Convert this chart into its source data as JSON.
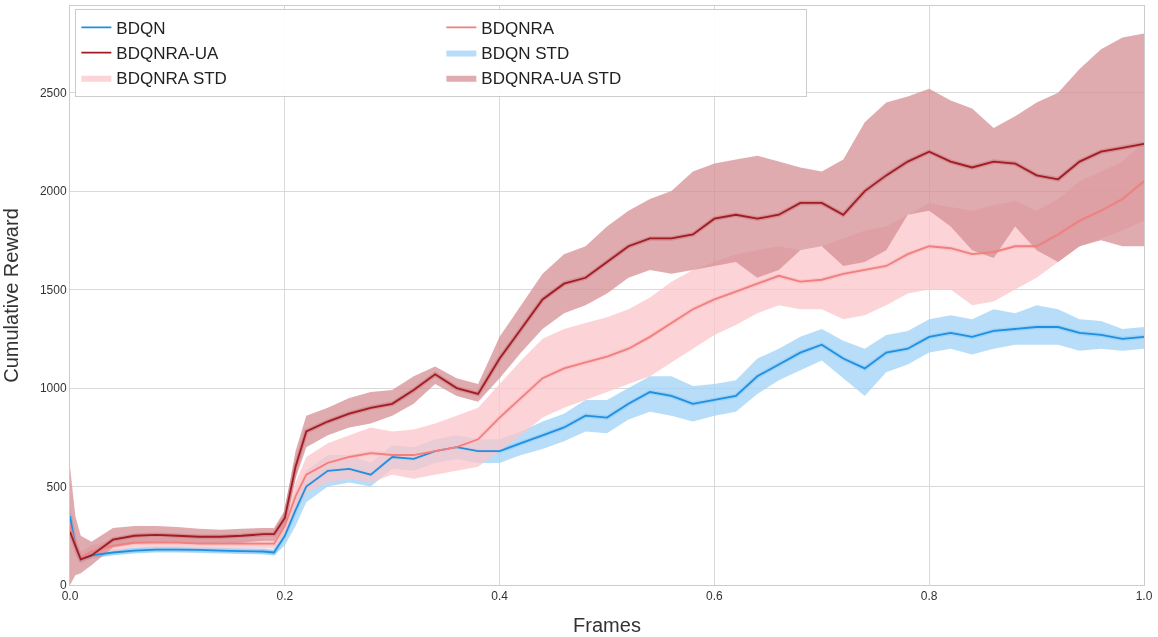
{
  "chart_data": {
    "type": "line",
    "xlabel": "Frames",
    "ylabel": "Cumulative Reward",
    "x": [
      0,
      0.005,
      0.01,
      0.02,
      0.04,
      0.06,
      0.08,
      0.1,
      0.12,
      0.14,
      0.16,
      0.18,
      0.19,
      0.2,
      0.21,
      0.22,
      0.24,
      0.26,
      0.28,
      0.3,
      0.32,
      0.34,
      0.36,
      0.38,
      0.4,
      0.42,
      0.44,
      0.46,
      0.48,
      0.5,
      0.52,
      0.54,
      0.56,
      0.58,
      0.6,
      0.62,
      0.64,
      0.66,
      0.68,
      0.7,
      0.72,
      0.74,
      0.76,
      0.78,
      0.8,
      0.82,
      0.84,
      0.86,
      0.88,
      0.9,
      0.92,
      0.94,
      0.96,
      0.98,
      1.0
    ],
    "series": [
      {
        "name": "BDQN",
        "color": "#1f8fe0",
        "values": [
          350,
          200,
          130,
          150,
          165,
          175,
          180,
          180,
          178,
          175,
          172,
          170,
          165,
          250,
          380,
          500,
          580,
          590,
          560,
          650,
          640,
          680,
          700,
          680,
          680,
          720,
          760,
          800,
          860,
          850,
          920,
          980,
          960,
          920,
          940,
          960,
          1060,
          1120,
          1180,
          1220,
          1150,
          1100,
          1180,
          1200,
          1260,
          1280,
          1260,
          1290,
          1300,
          1310,
          1310,
          1280,
          1270,
          1250,
          1260
        ]
      },
      {
        "name": "BDQNRA",
        "color": "#f07f7f",
        "values": [
          300,
          200,
          140,
          170,
          200,
          215,
          215,
          215,
          210,
          210,
          210,
          210,
          210,
          300,
          450,
          560,
          620,
          650,
          670,
          660,
          660,
          680,
          700,
          740,
          850,
          950,
          1050,
          1100,
          1130,
          1160,
          1200,
          1260,
          1330,
          1400,
          1450,
          1490,
          1530,
          1570,
          1540,
          1550,
          1580,
          1600,
          1620,
          1680,
          1720,
          1710,
          1680,
          1690,
          1720,
          1720,
          1780,
          1850,
          1900,
          1960,
          2050
        ]
      },
      {
        "name": "BDQNRA-UA",
        "color": "#a01c24",
        "values": [
          270,
          200,
          130,
          150,
          230,
          250,
          255,
          250,
          245,
          245,
          250,
          258,
          258,
          340,
          600,
          780,
          830,
          870,
          900,
          920,
          990,
          1070,
          1000,
          970,
          1150,
          1300,
          1450,
          1530,
          1560,
          1640,
          1720,
          1760,
          1760,
          1780,
          1860,
          1880,
          1860,
          1880,
          1940,
          1940,
          1880,
          2000,
          2080,
          2150,
          2200,
          2150,
          2120,
          2150,
          2140,
          2080,
          2060,
          2150,
          2200,
          2220,
          2240
        ]
      },
      {
        "name": "BDQN STD",
        "color": "#9fd2f7",
        "values": [
          350,
          200,
          130,
          150,
          165,
          175,
          180,
          180,
          178,
          175,
          172,
          170,
          165,
          250,
          380,
          500,
          580,
          590,
          560,
          650,
          640,
          680,
          700,
          680,
          680,
          720,
          760,
          800,
          860,
          850,
          920,
          980,
          960,
          920,
          940,
          960,
          1060,
          1120,
          1180,
          1220,
          1150,
          1100,
          1180,
          1200,
          1260,
          1280,
          1260,
          1290,
          1300,
          1310,
          1310,
          1280,
          1270,
          1250,
          1260
        ],
        "lower": [
          300,
          150,
          110,
          135,
          150,
          160,
          165,
          165,
          163,
          160,
          157,
          155,
          150,
          200,
          300,
          420,
          500,
          520,
          500,
          590,
          580,
          620,
          640,
          620,
          620,
          660,
          690,
          730,
          780,
          770,
          840,
          880,
          860,
          830,
          860,
          880,
          970,
          1040,
          1090,
          1140,
          1050,
          960,
          1080,
          1120,
          1180,
          1200,
          1170,
          1200,
          1220,
          1220,
          1220,
          1190,
          1200,
          1190,
          1200
        ],
        "upper": [
          400,
          250,
          150,
          165,
          180,
          190,
          195,
          195,
          193,
          190,
          187,
          185,
          180,
          300,
          460,
          580,
          660,
          660,
          620,
          710,
          700,
          740,
          760,
          740,
          740,
          780,
          830,
          870,
          940,
          940,
          1000,
          1060,
          1060,
          1010,
          1020,
          1040,
          1150,
          1200,
          1260,
          1300,
          1240,
          1200,
          1270,
          1290,
          1350,
          1370,
          1350,
          1400,
          1380,
          1420,
          1400,
          1350,
          1340,
          1300,
          1310
        ]
      },
      {
        "name": "BDQNRA STD",
        "color": "#fbc6c9",
        "values": [
          300,
          200,
          140,
          170,
          200,
          215,
          215,
          215,
          210,
          210,
          210,
          210,
          210,
          300,
          450,
          560,
          620,
          650,
          670,
          660,
          660,
          680,
          700,
          740,
          850,
          950,
          1050,
          1100,
          1130,
          1160,
          1200,
          1260,
          1330,
          1400,
          1450,
          1490,
          1530,
          1570,
          1540,
          1550,
          1580,
          1600,
          1620,
          1680,
          1720,
          1710,
          1680,
          1690,
          1720,
          1720,
          1780,
          1850,
          1900,
          1960,
          2050
        ],
        "lower": [
          250,
          150,
          110,
          140,
          170,
          190,
          190,
          190,
          185,
          185,
          185,
          185,
          185,
          250,
          380,
          470,
          520,
          540,
          520,
          560,
          540,
          560,
          580,
          600,
          680,
          760,
          850,
          900,
          940,
          980,
          1020,
          1060,
          1130,
          1200,
          1270,
          1320,
          1380,
          1420,
          1400,
          1400,
          1350,
          1370,
          1420,
          1480,
          1500,
          1500,
          1420,
          1440,
          1500,
          1560,
          1640,
          1720,
          1760,
          1800,
          1850
        ],
        "upper": [
          350,
          250,
          170,
          200,
          230,
          240,
          240,
          240,
          235,
          235,
          235,
          235,
          235,
          350,
          520,
          650,
          720,
          760,
          800,
          780,
          790,
          820,
          860,
          900,
          1020,
          1140,
          1250,
          1300,
          1330,
          1360,
          1400,
          1460,
          1540,
          1600,
          1640,
          1680,
          1700,
          1720,
          1700,
          1720,
          1760,
          1800,
          1820,
          1880,
          1940,
          1920,
          1900,
          1930,
          1950,
          1900,
          1960,
          2050,
          2100,
          2150,
          2250
        ]
      },
      {
        "name": "BDQNRA-UA STD",
        "color": "#d48f93",
        "values": [
          270,
          200,
          130,
          150,
          230,
          250,
          255,
          250,
          245,
          245,
          250,
          258,
          258,
          340,
          600,
          780,
          830,
          870,
          900,
          920,
          990,
          1070,
          1000,
          970,
          1150,
          1300,
          1450,
          1530,
          1560,
          1640,
          1720,
          1760,
          1760,
          1780,
          1860,
          1880,
          1860,
          1880,
          1940,
          1940,
          1880,
          2000,
          2080,
          2150,
          2200,
          2150,
          2120,
          2150,
          2140,
          2080,
          2060,
          2150,
          2200,
          2220,
          2240
        ],
        "lower": [
          0,
          50,
          60,
          100,
          190,
          210,
          215,
          215,
          210,
          210,
          215,
          225,
          225,
          300,
          540,
          700,
          760,
          800,
          820,
          860,
          920,
          1020,
          960,
          930,
          1050,
          1180,
          1300,
          1380,
          1420,
          1480,
          1560,
          1600,
          1580,
          1600,
          1620,
          1640,
          1560,
          1600,
          1700,
          1720,
          1620,
          1640,
          1700,
          1880,
          1900,
          1820,
          1700,
          1660,
          1820,
          1700,
          1640,
          1720,
          1750,
          1720,
          1720
        ],
        "upper": [
          600,
          350,
          250,
          220,
          290,
          300,
          300,
          295,
          285,
          280,
          285,
          290,
          290,
          380,
          680,
          860,
          900,
          950,
          980,
          990,
          1060,
          1110,
          1050,
          1020,
          1260,
          1420,
          1580,
          1680,
          1720,
          1820,
          1900,
          1960,
          2000,
          2100,
          2140,
          2160,
          2180,
          2150,
          2120,
          2100,
          2160,
          2350,
          2450,
          2480,
          2520,
          2460,
          2420,
          2320,
          2380,
          2450,
          2500,
          2620,
          2720,
          2780,
          2800
        ]
      }
    ],
    "xlim": [
      0,
      1
    ],
    "ylim": [
      0,
      2940
    ],
    "xticks": [
      {
        "value": 0,
        "label": "0.0"
      },
      {
        "value": 0.2,
        "label": "0.2"
      },
      {
        "value": 0.4,
        "label": "0.4"
      },
      {
        "value": 0.6,
        "label": "0.6"
      },
      {
        "value": 0.8,
        "label": "0.8"
      },
      {
        "value": 1,
        "label": "1.0"
      }
    ],
    "yticks": [
      0,
      500,
      1000,
      1500,
      2000,
      2500
    ],
    "grid": true,
    "legend": "top left",
    "marker": "none",
    "line_style": "solid"
  }
}
